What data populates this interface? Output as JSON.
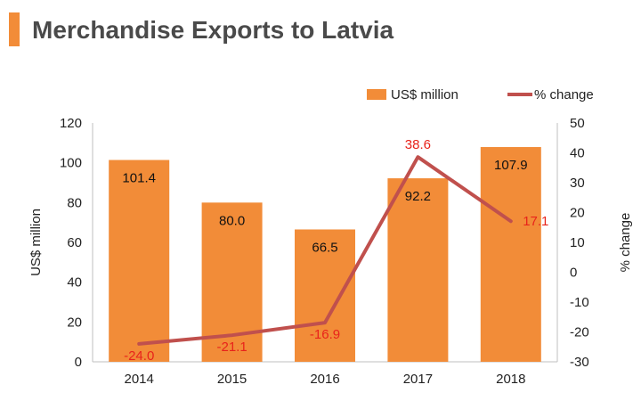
{
  "page": {
    "title": "Merchandise Exports to Latvia"
  },
  "colors": {
    "accent": "#f28c38",
    "bar": "#f28c38",
    "line": "#c0504d",
    "line_label": "#e8231b"
  },
  "chart_data": {
    "type": "bar",
    "title": "Merchandise Exports to Latvia",
    "categories": [
      "2014",
      "2015",
      "2016",
      "2017",
      "2018"
    ],
    "series": [
      {
        "name": "US$ million",
        "type": "bar",
        "axis": "left",
        "values": [
          101.4,
          80.0,
          66.5,
          92.2,
          107.9
        ]
      },
      {
        "name": "% change",
        "type": "line",
        "axis": "right",
        "values": [
          -24.0,
          -21.1,
          -16.9,
          38.6,
          17.1
        ]
      }
    ],
    "ylabel": "US$ million",
    "y2label": "% change",
    "ylim": [
      0,
      120
    ],
    "y2lim": [
      -30,
      50
    ],
    "yticks": [
      "0",
      "20",
      "40",
      "60",
      "80",
      "100",
      "120"
    ],
    "y2ticks": [
      "-30",
      "-20",
      "-10",
      "0",
      "10",
      "20",
      "30",
      "40",
      "50"
    ],
    "bar_labels": [
      "101.4",
      "80.0",
      "66.5",
      "92.2",
      "107.9"
    ],
    "line_labels": [
      "-24.0",
      "-21.1",
      "-16.9",
      "38.6",
      "17.1"
    ],
    "legend_position": "top-right",
    "grid": false
  }
}
